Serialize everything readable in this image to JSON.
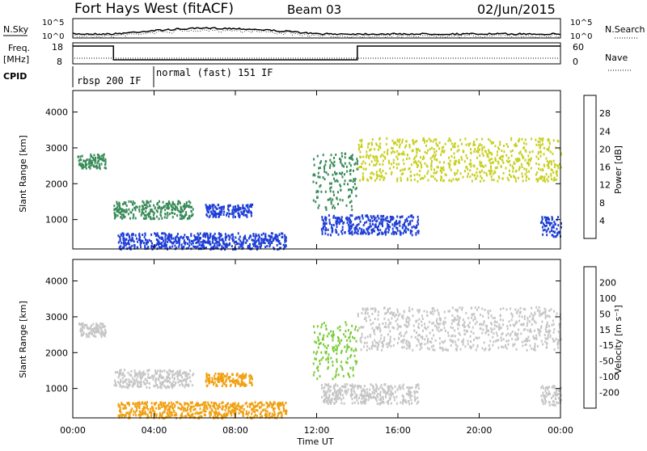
{
  "header": {
    "station": "Fort Hays West (fitACF)",
    "beam": "Beam 03",
    "date": "02/Jun/2015"
  },
  "top_panels": {
    "nsky_label": "N.Sky",
    "nsky_ticks": [
      "10^5",
      "10^0"
    ],
    "nsearch_label": "N.Search",
    "nsearch_ticks": [
      "10^5",
      "10^0"
    ],
    "freq_label_1": "Freq.",
    "freq_label_2": "[MHz]",
    "freq_ticks": [
      "18",
      "8"
    ],
    "nave_label": "Nave",
    "nave_ticks": [
      "60",
      "0"
    ],
    "cpid_label": "CPID",
    "cpid_segments": [
      {
        "label": "rbsp 200 IF",
        "start_h": 0,
        "end_h": 3.8
      },
      {
        "label": "normal (fast) 151 IF",
        "start_h": 3.8,
        "end_h": 24
      }
    ],
    "freq_steps": [
      {
        "start_h": 0,
        "end_h": 2,
        "level": "high"
      },
      {
        "start_h": 2,
        "end_h": 14,
        "level": "low"
      },
      {
        "start_h": 14,
        "end_h": 24,
        "level": "high"
      }
    ]
  },
  "chart_data": [
    {
      "type": "heatmap",
      "name": "power",
      "ylabel": "Slant Range [km]",
      "yticks": [
        1000,
        2000,
        3000,
        4000
      ],
      "ylim": [
        180,
        4600
      ],
      "xlim": [
        0,
        24
      ],
      "colorbar_label": "Power [dB]",
      "colorbar_ticks": [
        "4",
        "8",
        "12",
        "16",
        "20",
        "24",
        "28"
      ],
      "colorbar_colors": [
        "#1e1eff",
        "#2a5ab8",
        "#3d8f6a",
        "#6fbf3a",
        "#d9d919",
        "#ff9a10",
        "#ff5a08",
        "#ff1010"
      ],
      "colors": {
        "low": "#1e3fd6",
        "mid": "#3a8c5a",
        "high": "#c8d020",
        "peak": "#ff8c10"
      },
      "echo_bands": [
        {
          "t0": 0.2,
          "t1": 1.6,
          "r0": 2450,
          "r1": 2850,
          "level": "mid"
        },
        {
          "t0": 2.0,
          "t1": 5.9,
          "r0": 1050,
          "r1": 1550,
          "level": "mid"
        },
        {
          "t0": 6.5,
          "t1": 8.8,
          "r0": 1100,
          "r1": 1450,
          "level": "low"
        },
        {
          "t0": 11.8,
          "t1": 14.0,
          "r0": 1300,
          "r1": 2900,
          "level": "mid"
        },
        {
          "t0": 12.2,
          "t1": 17.0,
          "r0": 600,
          "r1": 1150,
          "level": "low"
        },
        {
          "t0": 14.0,
          "t1": 24.0,
          "r0": 2100,
          "r1": 3300,
          "level": "high"
        },
        {
          "t0": 23.0,
          "t1": 24.0,
          "r0": 550,
          "r1": 1100,
          "level": "low"
        },
        {
          "t0": 2.2,
          "t1": 10.5,
          "r0": 200,
          "r1": 650,
          "level": "low"
        }
      ]
    },
    {
      "type": "heatmap",
      "name": "velocity",
      "ylabel": "Slant Range [km]",
      "yticks": [
        1000,
        2000,
        3000,
        4000
      ],
      "ylim": [
        180,
        4600
      ],
      "xlim": [
        0,
        24
      ],
      "xticks": [
        "00:00",
        "04:00",
        "08:00",
        "12:00",
        "16:00",
        "20:00",
        "00:00"
      ],
      "xlabel": "Time UT",
      "colorbar_label": "Velocity [m s⁻¹]",
      "colorbar_ticks": [
        "200",
        "100",
        "50",
        "15",
        "-15",
        "-50",
        "-100",
        "-200"
      ],
      "colorbar_colors": [
        "#2a3fb0",
        "#2f7f9a",
        "#2e8b3e",
        "#7acc3a",
        "#c8c8c8",
        "#f0b000",
        "#ff7a00",
        "#ff4a00",
        "#ff1010"
      ],
      "colors": {
        "gray": "#c6c6c6",
        "green": "#7acc3a",
        "orange": "#f0a010"
      },
      "echo_bands": [
        {
          "t0": 0.2,
          "t1": 1.6,
          "r0": 2450,
          "r1": 2850,
          "level": "gray"
        },
        {
          "t0": 2.0,
          "t1": 5.9,
          "r0": 1050,
          "r1": 1550,
          "level": "gray"
        },
        {
          "t0": 6.5,
          "t1": 8.8,
          "r0": 1100,
          "r1": 1450,
          "level": "orange"
        },
        {
          "t0": 11.8,
          "t1": 14.0,
          "r0": 1300,
          "r1": 2900,
          "level": "green"
        },
        {
          "t0": 12.2,
          "t1": 17.0,
          "r0": 600,
          "r1": 1150,
          "level": "gray"
        },
        {
          "t0": 14.0,
          "t1": 24.0,
          "r0": 2100,
          "r1": 3300,
          "level": "gray"
        },
        {
          "t0": 23.0,
          "t1": 24.0,
          "r0": 550,
          "r1": 1100,
          "level": "gray"
        },
        {
          "t0": 2.2,
          "t1": 10.5,
          "r0": 200,
          "r1": 650,
          "level": "orange"
        }
      ]
    }
  ]
}
